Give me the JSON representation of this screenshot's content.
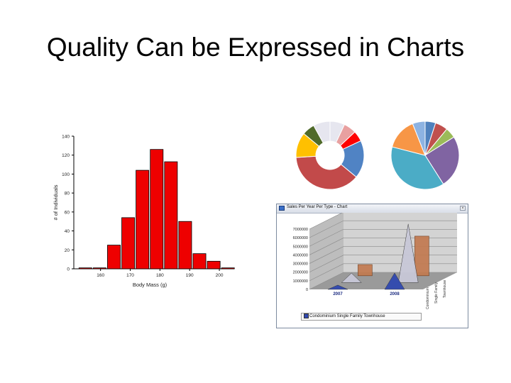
{
  "slide": {
    "title": "Quality Can be Expressed in Charts"
  },
  "chart_data": [
    {
      "type": "bar",
      "title": "",
      "xlabel": "Body Mass (g)",
      "ylabel": "# of Individuals",
      "x_ticks": [
        "160",
        "170",
        "180",
        "190",
        "200"
      ],
      "x_tick_values": [
        160,
        170,
        180,
        190,
        200
      ],
      "y_ticks": [
        "0",
        "20",
        "40",
        "60",
        "80",
        "100",
        "120",
        "140"
      ],
      "y_tick_values": [
        0,
        20,
        40,
        60,
        80,
        100,
        120,
        140
      ],
      "ylim": [
        0,
        140
      ],
      "xlim": [
        151,
        205
      ],
      "bin_width": 4.8,
      "bin_starts": [
        152.5,
        157.3,
        162.1,
        166.9,
        171.7,
        176.5,
        181.3,
        186.1,
        190.9,
        195.7,
        200.5
      ],
      "values": [
        1,
        1,
        25,
        54,
        104,
        126,
        113,
        50,
        16,
        8,
        1
      ],
      "bar_color": "#ee0000",
      "grid": false
    },
    {
      "type": "pie",
      "donut": true,
      "title": "",
      "values": [
        7,
        6,
        5,
        18,
        38,
        12,
        6,
        8
      ],
      "colors": [
        "#e6e6ef",
        "#e8a0a0",
        "#ff0000",
        "#5083c4",
        "#c24a4a",
        "#ffc000",
        "#4f6a2a",
        "#e6e6ef"
      ]
    },
    {
      "type": "pie",
      "donut": false,
      "title": "",
      "values": [
        5,
        6,
        5,
        25,
        38,
        15,
        6
      ],
      "colors": [
        "#4f81bd",
        "#c0504d",
        "#9bbb59",
        "#8064a2",
        "#4bacc6",
        "#f79646",
        "#8db3e2"
      ]
    },
    {
      "type": "area",
      "title": "Sales Per Year Per Type - Chart",
      "categories": [
        "2007",
        "2008"
      ],
      "series_axis_labels": [
        "Condominium",
        "Single Family",
        "Townhouse"
      ],
      "y_ticks": [
        "0",
        "1000000",
        "2000000",
        "3000000",
        "4000000",
        "5000000",
        "6000000",
        "7000000"
      ],
      "ylim": [
        0,
        7000000
      ],
      "series": [
        {
          "name": "Condominium",
          "color": "#3048b0",
          "values": [
            500000,
            1900000
          ]
        },
        {
          "name": "Single Family",
          "color": "#c8c8d8",
          "values": [
            1100000,
            6800000
          ]
        },
        {
          "name": "Townhouse",
          "color": "#c27a50",
          "values": [
            1300000,
            4600000
          ]
        }
      ],
      "legend_text": "Condominium Single Family Townhouse",
      "legend": "bottom",
      "grid": true
    }
  ],
  "window": {
    "title": "Sales Per Year Per Type - Chart",
    "close_glyph": "×"
  }
}
